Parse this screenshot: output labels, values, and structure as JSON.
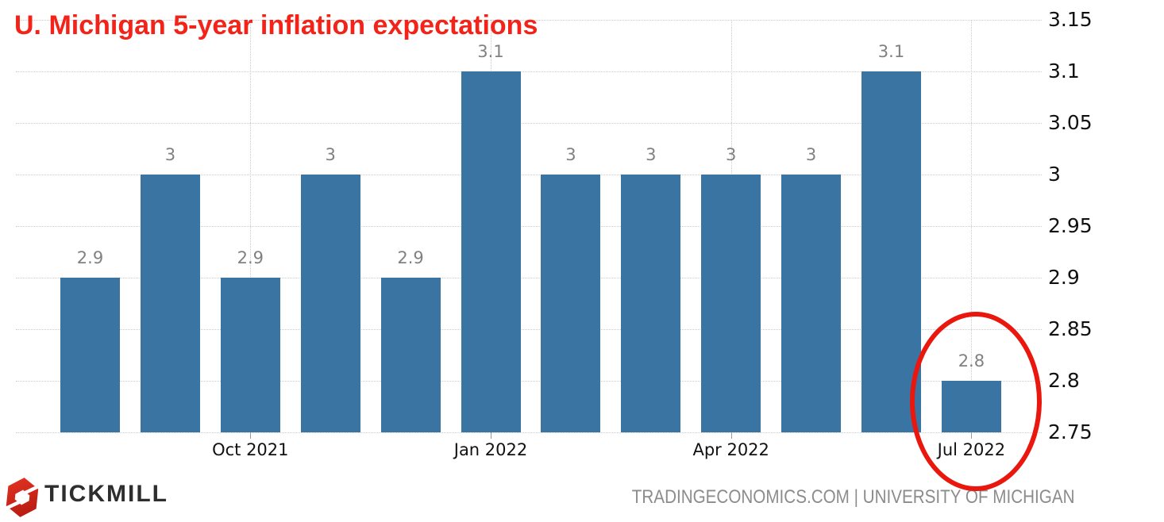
{
  "colors": {
    "bar": "#3a74a3",
    "title_red": "#f3231a",
    "circle_red": "#e9170e",
    "bar_label_gray": "#818181",
    "axis_text": "#111111",
    "gridline": "#cccccc",
    "footer_text_gray": "#8c8c8c",
    "brand_text_dark": "#2e2e2e",
    "brand_red_light": "#e53424",
    "brand_red_dark": "#ba1d12"
  },
  "chart_data": {
    "type": "bar",
    "title": "U. Michigan 5-year inflation expectations",
    "values": [
      2.9,
      3,
      2.9,
      3,
      2.9,
      3.1,
      3,
      3,
      3,
      3,
      3.1,
      2.8
    ],
    "value_labels": [
      "2.9",
      "3",
      "2.9",
      "3",
      "2.9",
      "3.1",
      "3",
      "3",
      "3",
      "3",
      "3.1",
      "2.8"
    ],
    "x_ticks": [
      {
        "label": "Oct 2021",
        "bar_index": 2
      },
      {
        "label": "Jan 2022",
        "bar_index": 5
      },
      {
        "label": "Apr 2022",
        "bar_index": 8
      },
      {
        "label": "Jul 2022",
        "bar_index": 11
      }
    ],
    "y_ticks": [
      {
        "value": 3.15,
        "label": "3.15"
      },
      {
        "value": 3.1,
        "label": "3.1"
      },
      {
        "value": 3.05,
        "label": "3.05"
      },
      {
        "value": 3,
        "label": "3"
      },
      {
        "value": 2.95,
        "label": "2.95"
      },
      {
        "value": 2.9,
        "label": "2.9"
      },
      {
        "value": 2.85,
        "label": "2.85"
      },
      {
        "value": 2.8,
        "label": "2.8"
      },
      {
        "value": 2.75,
        "label": "2.75"
      }
    ],
    "ylim": [
      2.75,
      3.15
    ],
    "grid": true,
    "legend": "none",
    "y_axis_side": "right",
    "highlight": {
      "bar_index": 11,
      "annotation": "red-ellipse"
    }
  },
  "footer": {
    "brand": "TICKMILL",
    "brand_icon": "tickmill-hexagon-logo",
    "source": "TRADINGECONOMICS.COM | UNIVERSITY OF MICHIGAN"
  }
}
